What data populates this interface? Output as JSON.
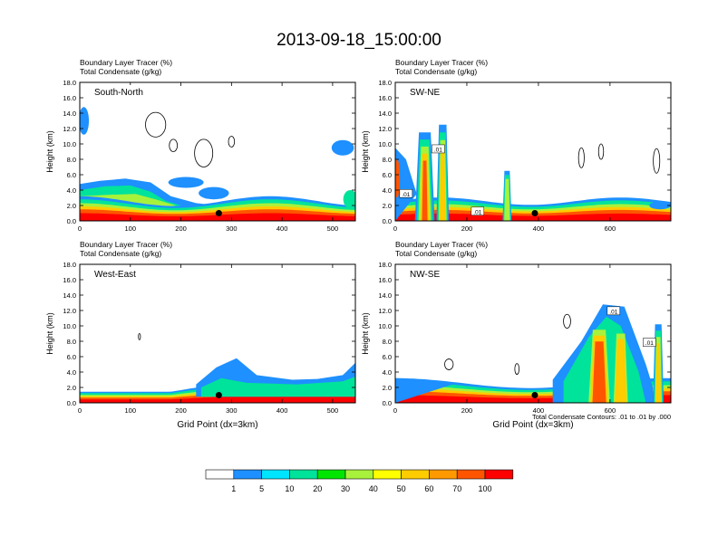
{
  "title": "2013-09-18_15:00:00",
  "colorbar": {
    "labels": [
      "1",
      "5",
      "10",
      "20",
      "30",
      "40",
      "50",
      "60",
      "70",
      "100"
    ],
    "colors": [
      "#ffffff",
      "#1e90ff",
      "#00e5ff",
      "#00e39a",
      "#00e600",
      "#a8f23c",
      "#ffff00",
      "#ffcc00",
      "#ff9900",
      "#ff5500",
      "#ff0000"
    ]
  },
  "footnote": "Total Condensate Contours: .01 to .01 by .000",
  "chart_data": [
    {
      "type": "heatmap",
      "title": "South-North",
      "header_line1": "Boundary Layer Tracer   (%)",
      "header_line2": "Total Condensate   (g/kg)",
      "ylabel": "Height (km)",
      "xlabel": "",
      "xlim": [
        0,
        545
      ],
      "ylim": [
        0,
        18
      ],
      "x_ticks": [
        0,
        100,
        200,
        300,
        400,
        500
      ],
      "y_ticks": [
        "0.0",
        "2.0",
        "4.0",
        "6.0",
        "8.0",
        "10.0",
        "12.0",
        "14.0",
        "16.0",
        "18.0"
      ],
      "marker_x": 275,
      "contour_labels": []
    },
    {
      "type": "heatmap",
      "title": "SW-NE",
      "header_line1": "Boundary Layer Tracer   (%)",
      "header_line2": "Total Condensate   (g/kg)",
      "ylabel": "Height (km)",
      "xlabel": "",
      "xlim": [
        0,
        770
      ],
      "ylim": [
        0,
        18
      ],
      "x_ticks": [
        0,
        200,
        400,
        600
      ],
      "y_ticks": [
        "0.0",
        "2.0",
        "4.0",
        "6.0",
        "8.0",
        "10.0",
        "12.0",
        "14.0",
        "16.0",
        "18.0"
      ],
      "marker_x": 390,
      "contour_labels": [
        ".01",
        ".01",
        ".01"
      ]
    },
    {
      "type": "heatmap",
      "title": "West-East",
      "header_line1": "Boundary Layer Tracer   (%)",
      "header_line2": "Total Condensate   (g/kg)",
      "ylabel": "Height (km)",
      "xlabel": "Grid Point (dx=3km)",
      "xlim": [
        0,
        545
      ],
      "ylim": [
        0,
        18
      ],
      "x_ticks": [
        0,
        100,
        200,
        300,
        400,
        500
      ],
      "y_ticks": [
        "0.0",
        "2.0",
        "4.0",
        "6.0",
        "8.0",
        "10.0",
        "12.0",
        "14.0",
        "16.0",
        "18.0"
      ],
      "marker_x": 275,
      "contour_labels": []
    },
    {
      "type": "heatmap",
      "title": "NW-SE",
      "header_line1": "Boundary Layer Tracer   (%)",
      "header_line2": "Total Condensate   (g/kg)",
      "ylabel": "Height (km)",
      "xlabel": "Grid Point (dx=3km)",
      "xlim": [
        0,
        770
      ],
      "ylim": [
        0,
        18
      ],
      "x_ticks": [
        0,
        200,
        400,
        600
      ],
      "y_ticks": [
        "0.0",
        "2.0",
        "4.0",
        "6.0",
        "8.0",
        "10.0",
        "12.0",
        "14.0",
        "16.0",
        "18.0"
      ],
      "marker_x": 390,
      "contour_labels": [
        ".01",
        ".01"
      ]
    }
  ]
}
